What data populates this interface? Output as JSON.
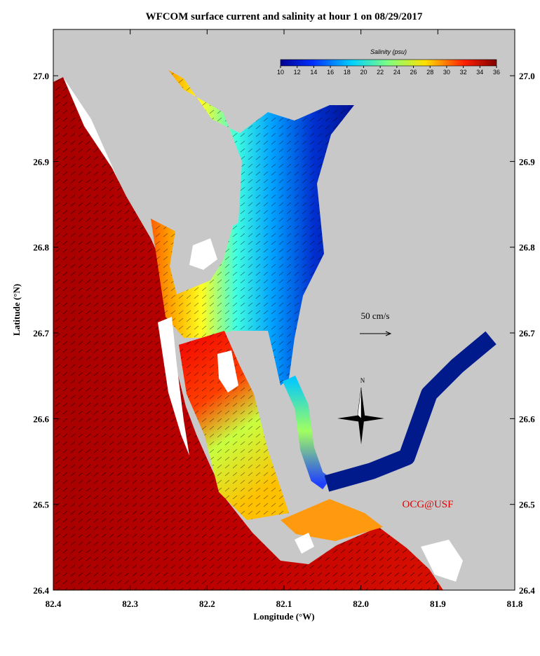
{
  "chart_data": {
    "type": "map",
    "title": "WFCOM surface current and salinity at hour 1 on 08/29/2017",
    "x_label": "Longitude (°W)",
    "y_label": "Latitude (°N)",
    "xlim": [
      82.4,
      81.8
    ],
    "xticks": [
      82.4,
      82.3,
      82.2,
      82.1,
      {
        "value": 82,
        "label": "82.0"
      },
      81.9,
      81.8
    ],
    "ylim": [
      26.4,
      27.054
    ],
    "yticks": [
      26.4,
      26.5,
      26.6,
      26.7,
      26.8,
      26.9,
      {
        "value": 27,
        "label": "27.0"
      }
    ],
    "colorbar": {
      "label": "Salinity (psu)",
      "lim": [
        10,
        36
      ],
      "ticks": [
        10,
        12,
        14,
        16,
        18,
        20,
        22,
        24,
        26,
        28,
        30,
        32,
        34,
        36
      ]
    },
    "scale_label": "50 cm/s",
    "compass_label": "N",
    "credit": "OCG@USF"
  }
}
